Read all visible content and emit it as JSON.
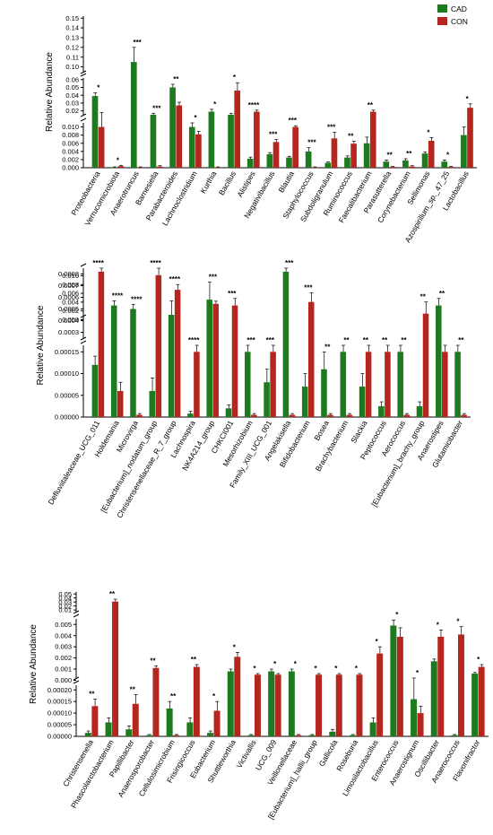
{
  "colors": {
    "CAD": "#1e7a1e",
    "CON": "#b5261e"
  },
  "legend": [
    {
      "name": "CAD",
      "color": "#1e7a1e"
    },
    {
      "name": "CON",
      "color": "#b5261e"
    }
  ],
  "chart_data": [
    {
      "type": "bar",
      "ylabel": "Relative Abundance",
      "segments": [
        {
          "ticks": [
            "0.000",
            "0.002",
            "0.004",
            "0.006",
            "0.008",
            "0.010"
          ],
          "range": [
            0,
            0.011
          ]
        },
        {
          "ticks": [
            "0.02",
            "0.03",
            "0.04",
            "0.05",
            "0.06"
          ],
          "range": [
            0.015,
            0.062
          ]
        },
        {
          "ticks": [
            "0.10",
            "0.11",
            "0.12",
            "0.13",
            "0.14",
            "0.15"
          ],
          "range": [
            0.095,
            0.152
          ]
        }
      ],
      "categories": [
        "Proteobacteria",
        "Verrucomicrobiota",
        "Anaerotruncus",
        "Barnesiella",
        "Parabacteroides",
        "Lachnoclostridium",
        "Kurthia",
        "Bacillus",
        "Alistipes",
        "Negativibacillus",
        "Blautia",
        "Staphylococcus",
        "Subdoligranulum",
        "Ruminococcus",
        "Faecalibacterium",
        "Parasutterella",
        "Corynebacterium",
        "Sellimonas",
        "Azospirillum_sp._47_25",
        "Lactobacillus"
      ],
      "series": [
        {
          "name": "CAD",
          "values": [
            0.039,
            0.0001,
            0.105,
            0.015,
            0.05,
            0.01,
            0.019,
            0.015,
            0.0022,
            0.0033,
            0.0025,
            0.004,
            0.0012,
            0.0025,
            0.006,
            0.0015,
            0.0018,
            0.0035,
            0.0015,
            0.008
          ],
          "errors": [
            0.004,
            0.0001,
            0.015,
            0.002,
            0.004,
            0.001,
            0.003,
            0.002,
            0.0004,
            0.0004,
            0.0003,
            0.0009,
            0.0002,
            0.0004,
            0.0015,
            0.0004,
            0.0004,
            0.0004,
            0.0004,
            0.002
          ]
        },
        {
          "name": "CON",
          "values": [
            0.01,
            0.0004,
            0.0001,
            0.0003,
            0.027,
            0.0082,
            0.0001,
            0.046,
            0.019,
            0.0063,
            0.01,
            0.0001,
            0.0072,
            0.0059,
            0.019,
            0.0002,
            0.0003,
            0.0066,
            0.0002,
            0.024
          ],
          "errors": [
            0.008,
            0.0002,
            0.0001,
            0.0002,
            0.004,
            0.0007,
            0.0001,
            0.01,
            0.002,
            0.0006,
            0.0003,
            0.0001,
            0.0015,
            0.0006,
            0.002,
            0.0001,
            0.0002,
            0.0008,
            0.0001,
            0.005
          ]
        }
      ],
      "significance": [
        "*",
        "*",
        "***",
        "***",
        "**",
        "*",
        "*",
        "*",
        "****",
        "***",
        "***",
        "***",
        "***",
        "**",
        "**",
        "**",
        "**",
        "*",
        "*",
        "*"
      ]
    },
    {
      "type": "bar",
      "ylabel": "Relative Abundance",
      "segments": [
        {
          "ticks": [
            "0.00000",
            "0.00005",
            "0.00010",
            "0.00015"
          ],
          "range": [
            0,
            0.000165
          ]
        },
        {
          "ticks": [
            "0.0003",
            "0.0004",
            "0.0005",
            "0.0006",
            "0.0007",
            "0.0008"
          ],
          "range": [
            0.00025,
            0.00085
          ]
        },
        {
          "ticks": [
            "0.000",
            "0.002",
            "0.004",
            "0.006",
            "0.008",
            "0.010"
          ],
          "range": [
            0.0009,
            0.0105
          ]
        }
      ],
      "categories": [
        "Defluviitaleaceae_UCG_011",
        "Holdemania",
        "Microvirga",
        "[Eubacterium]_nodatum_group",
        "Christensenellaceae_R_7_group",
        "Lachnospira",
        "NK4A214_group",
        "CHKCI001",
        "Mesorhizobium",
        "Family_XIII_UCG_001",
        "Angelakisella",
        "Bifidobacterium",
        "Bosea",
        "Brachybacterium",
        "Slackia",
        "Peptococcus",
        "Aerococcus",
        "[Eubacterium]_brachy_group",
        "Anaerostipes",
        "Glutamicibacter"
      ],
      "series": [
        {
          "name": "CAD",
          "values": [
            0.00012,
            0.00053,
            0.0005,
            6e-05,
            0.00045,
            8e-06,
            0.00058,
            2e-05,
            0.00015,
            8e-05,
            0.00082,
            7e-05,
            0.00011,
            0.00015,
            7e-05,
            2.5e-05,
            0.00015,
            2.5e-05,
            0.00053,
            0.00015
          ],
          "errors": [
            2e-05,
            4e-05,
            4e-05,
            3e-05,
            0.00012,
            5e-06,
            0.00015,
            8e-06,
            2e-05,
            3e-05,
            5e-05,
            3e-05,
            4e-05,
            2e-05,
            3e-05,
            1e-05,
            2e-05,
            1e-05,
            6e-05,
            2e-05
          ]
        },
        {
          "name": "CON",
          "values": [
            0.00082,
            6e-05,
            5e-06,
            0.00079,
            0.0068,
            0.00015,
            0.0036,
            0.00053,
            5e-06,
            0.00015,
            5e-06,
            0.00056,
            5e-06,
            5e-06,
            0.00015,
            0.00015,
            5e-06,
            0.00046,
            0.00015,
            5e-06
          ],
          "errors": [
            4e-05,
            2e-05,
            3e-06,
            6e-05,
            0.0012,
            2e-05,
            0.0006,
            6e-05,
            3e-06,
            2e-05,
            3e-06,
            8e-05,
            3e-06,
            3e-06,
            2e-05,
            2e-05,
            3e-06,
            0.0001,
            2e-05,
            3e-06
          ]
        }
      ],
      "significance": [
        "****",
        "****",
        "****",
        "****",
        "****",
        "****",
        "***",
        "***",
        "***",
        "***",
        "***",
        "***",
        "**",
        "**",
        "**",
        "**",
        "**",
        "**",
        "**",
        "**"
      ]
    },
    {
      "type": "bar",
      "ylabel": "Relative Abundance",
      "segments": [
        {
          "ticks": [
            "0.00000",
            "0.00005",
            "0.00010",
            "0.00015",
            "0.00020"
          ],
          "range": [
            0,
            0.00022
          ]
        },
        {
          "ticks": [
            "0.000",
            "0.001",
            "0.002",
            "0.003",
            "0.004",
            "0.005"
          ],
          "range": [
            0.0002,
            0.0055
          ]
        },
        {
          "ticks": [
            "0.01",
            "0.02",
            "0.03",
            "0.04",
            "0.05"
          ],
          "range": [
            0.0058,
            0.055
          ]
        }
      ],
      "categories": [
        "Christensenella",
        "Phascolarctobacterium",
        "Papillibacter",
        "Anaerosporobacter",
        "Cellulosimicrobium",
        "Frisingicoccus",
        "Eubacterium",
        "Shuttleworthia",
        "Victivallis",
        "UCG_009",
        "Veillonellaceae",
        "[Eubacterium]_hallii_group",
        "Gallicola",
        "Roseburia",
        "Limosilactobacillus",
        "Enterococcus",
        "Anaerostignum",
        "Oscillibacter",
        "Anaerococcus",
        "Flavonifractor"
      ],
      "series": [
        {
          "name": "CAD",
          "values": [
            1.5e-05,
            6e-05,
            3e-05,
            5e-06,
            0.00012,
            6e-05,
            1.5e-05,
            0.0008,
            5e-06,
            0.0008,
            0.0008,
            5e-06,
            2e-05,
            5e-06,
            6e-05,
            0.0049,
            0.00016,
            0.0017,
            5e-06,
            0.0006
          ],
          "errors": [
            8e-06,
            2e-05,
            1.5e-05,
            3e-06,
            3e-05,
            2e-05,
            8e-06,
            0.0002,
            3e-06,
            0.0002,
            0.0002,
            3e-06,
            1e-05,
            3e-06,
            2e-05,
            0.0005,
            4e-05,
            0.0002,
            3e-06,
            0.0001
          ]
        },
        {
          "name": "CON",
          "values": [
            0.00013,
            0.031,
            0.00014,
            0.0011,
            5e-06,
            0.0012,
            0.00011,
            0.0021,
            0.0005,
            0.0005,
            5e-06,
            0.0005,
            0.0005,
            0.0005,
            0.0024,
            0.0039,
            0.0001,
            0.0039,
            0.0041,
            0.0012
          ],
          "errors": [
            3e-05,
            0.006,
            4e-05,
            0.0002,
            3e-06,
            0.0002,
            4e-05,
            0.0004,
            0.0001,
            0.0001,
            3e-06,
            0.0001,
            0.0001,
            0.0001,
            0.0006,
            0.0008,
            3e-05,
            0.0006,
            0.0007,
            0.0002
          ]
        }
      ],
      "significance": [
        "**",
        "**",
        "**",
        "**",
        "**",
        "**",
        "*",
        "*",
        "*",
        "*",
        "*",
        "*",
        "*",
        "*",
        "*",
        "*",
        "*",
        "*",
        "*",
        "*"
      ]
    }
  ]
}
